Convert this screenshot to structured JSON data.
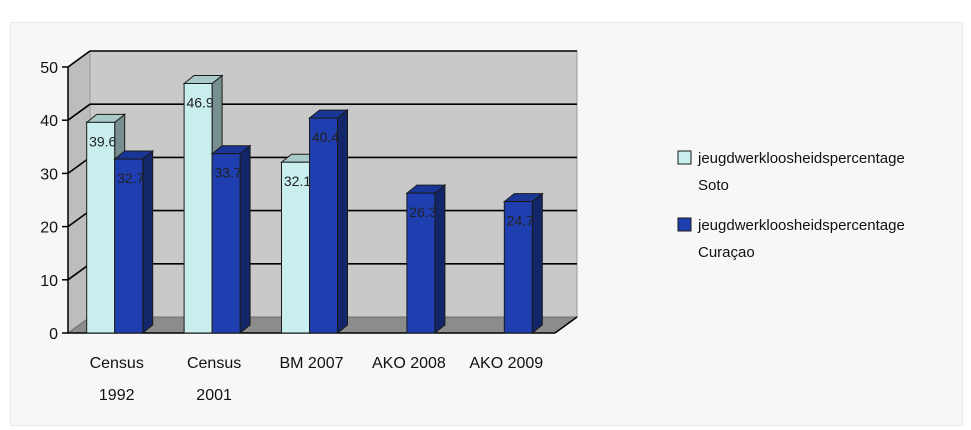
{
  "chart_data": {
    "type": "bar",
    "categories": [
      [
        "Census",
        "1992"
      ],
      [
        "Census",
        "2001"
      ],
      [
        "BM 2007"
      ],
      [
        "AKO 2008"
      ],
      [
        "AKO 2009"
      ]
    ],
    "series": [
      {
        "name_lines": [
          "jeugdwerkloosheidspercentage",
          "Soto"
        ],
        "values": [
          39.6,
          46.9,
          32.1,
          null,
          null
        ],
        "labels": [
          "39.6",
          "46.9",
          "32.1",
          null,
          null
        ],
        "color": "#c8eeee"
      },
      {
        "name_lines": [
          "jeugdwerkloosheidspercentage",
          "Curaçao"
        ],
        "values": [
          32.7,
          33.7,
          40.4,
          26.3,
          24.7
        ],
        "labels": [
          "32.7",
          "33.7",
          "40.4",
          "26.3",
          "24.7"
        ],
        "color": "#1f3fb0"
      }
    ],
    "y_ticks": [
      "0",
      "10",
      "20",
      "30",
      "40",
      "50"
    ],
    "ylim": [
      0,
      50
    ],
    "grid": true,
    "legend_position": "right",
    "style": "3d-clustered"
  }
}
